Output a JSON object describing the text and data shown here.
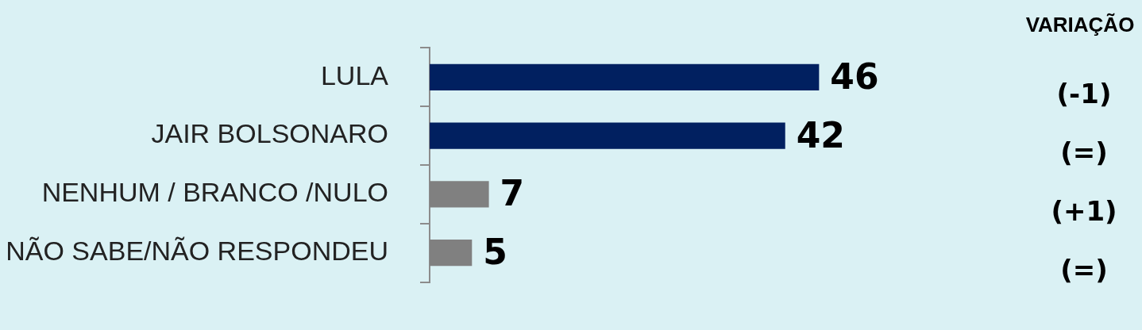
{
  "chart_data": {
    "type": "bar",
    "orientation": "horizontal",
    "categories": [
      "LULA",
      "JAIR BOLSONARO",
      "NENHUM / BRANCO /NULO",
      "NÃO SABE/NÃO RESPONDEU"
    ],
    "values": [
      46,
      42,
      7,
      5
    ],
    "colors": [
      "#012060",
      "#012060",
      "#808080",
      "#808080"
    ],
    "data_labels": true,
    "tick_labels": "y",
    "legend": false,
    "annotations": [
      "VARIAÇÃO",
      "(-1)",
      "(=)",
      "(+1)",
      "(=)"
    ]
  }
}
